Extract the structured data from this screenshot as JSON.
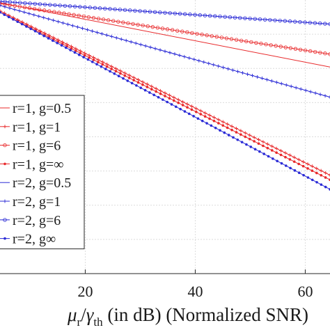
{
  "chart_data": {
    "type": "line",
    "title": "",
    "xlabel_parts": {
      "mu": "μ",
      "mu_sub": "r",
      "slash": "/",
      "gamma": "γ",
      "gamma_sub": "th",
      "rest": " (in dB) (Normalized SNR)"
    },
    "ylabel": "",
    "x_ticks": [
      20,
      40,
      60
    ],
    "xlim": [
      4.5,
      64.5
    ],
    "ylim": [
      0,
      1
    ],
    "y_grid": [
      0.125,
      0.25,
      0.375,
      0.5,
      0.625,
      0.75,
      0.875
    ],
    "grid": true,
    "legend_position": "left",
    "series": [
      {
        "name": "r=1, g=0.5",
        "color": "#e8292b",
        "marker": "line",
        "x": [
          4.5,
          64.5
        ],
        "y": [
          0.99,
          0.755
        ]
      },
      {
        "name": "r=1, g=1",
        "color": "#e8292b",
        "marker": "plus",
        "x": [
          4.5,
          64.5
        ],
        "y": [
          0.96,
          0.36
        ]
      },
      {
        "name": "r=1, g=6",
        "color": "#e8292b",
        "marker": "circle",
        "x": [
          4.5,
          64.5
        ],
        "y": [
          0.987,
          0.802
        ]
      },
      {
        "name": "r=1, g=∞",
        "color": "#e8292b",
        "marker": "dot",
        "x": [
          4.5,
          64.5
        ],
        "y": [
          0.955,
          0.343
        ]
      },
      {
        "name": "r=2, g=0.5",
        "color": "#2b2bd6",
        "marker": "line",
        "x": [
          4.5,
          64.5
        ],
        "y": [
          0.995,
          0.912
        ]
      },
      {
        "name": "r=2, g=1",
        "color": "#2b2bd6",
        "marker": "plus",
        "x": [
          4.5,
          64.5
        ],
        "y": [
          0.98,
          0.645
        ]
      },
      {
        "name": "r=2, g=6",
        "color": "#2b2bd6",
        "marker": "circle",
        "x": [
          4.5,
          64.5
        ],
        "y": [
          0.995,
          0.912
        ]
      },
      {
        "name": "r=2, g∞",
        "color": "#2b2bd6",
        "marker": "dot",
        "x": [
          4.5,
          64.5
        ],
        "y": [
          0.955,
          0.308
        ]
      }
    ]
  }
}
